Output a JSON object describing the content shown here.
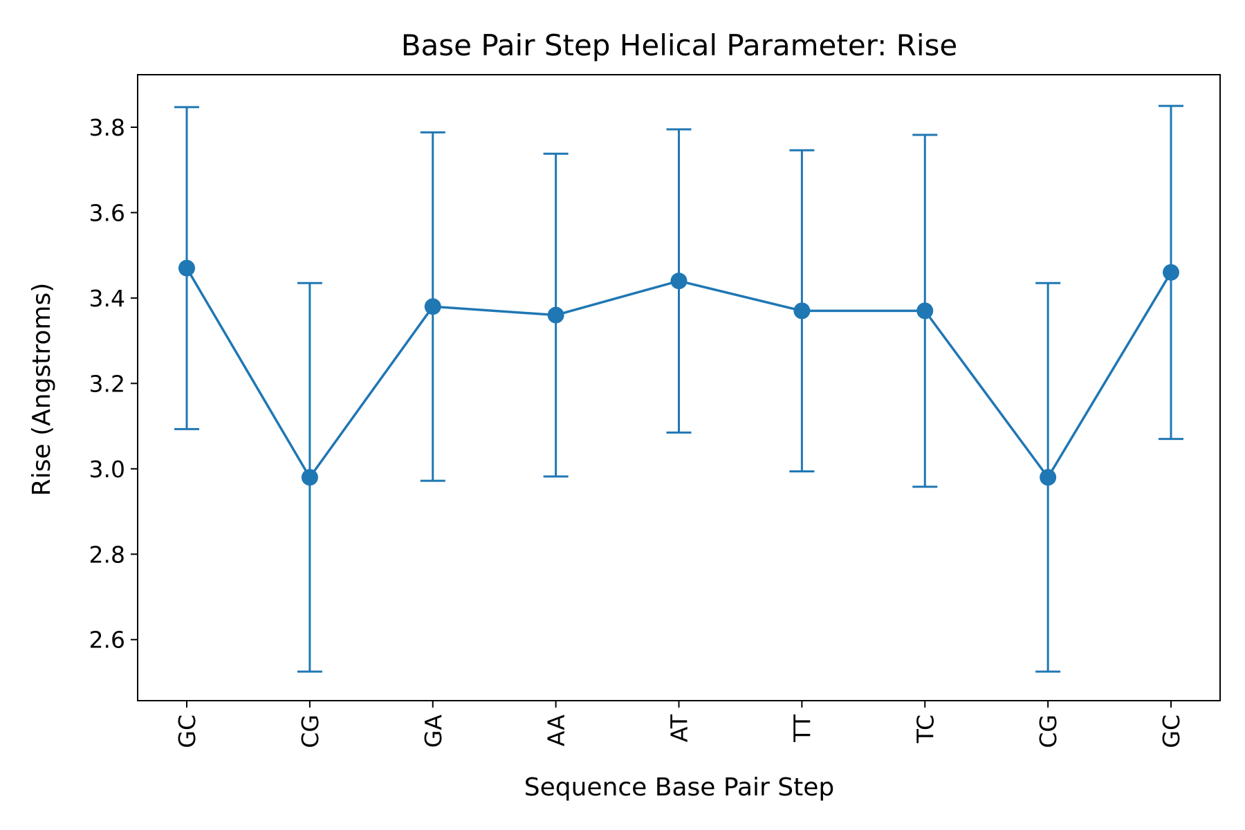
{
  "chart_data": {
    "type": "line",
    "title": "Base Pair Step Helical Parameter: Rise",
    "xlabel": "Sequence Base Pair Step",
    "ylabel": "Rise (Angstroms)",
    "categories": [
      "GC",
      "CG",
      "GA",
      "AA",
      "AT",
      "TT",
      "TC",
      "CG",
      "GC"
    ],
    "series": [
      {
        "values": [
          3.47,
          2.98,
          3.38,
          3.36,
          3.44,
          3.37,
          3.37,
          2.98,
          3.46
        ],
        "error": [
          0.377,
          0.455,
          0.408,
          0.378,
          0.355,
          0.376,
          0.412,
          0.455,
          0.39
        ]
      }
    ],
    "ylim": [
      2.457,
      3.923
    ],
    "yticks": [
      2.6,
      2.8,
      3.0,
      3.2,
      3.4,
      3.6,
      3.8
    ],
    "ytick_labels": [
      "2.6",
      "2.8",
      "3.0",
      "3.2",
      "3.4",
      "3.6",
      "3.8"
    ],
    "grid": false,
    "colors": {
      "series": "#1f77b4"
    }
  }
}
